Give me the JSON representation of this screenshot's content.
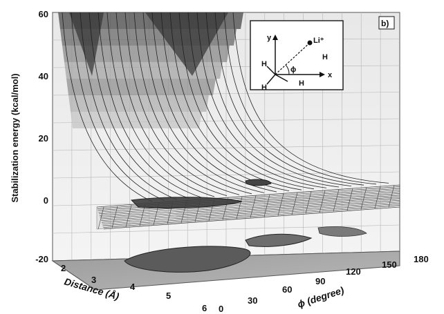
{
  "chart_data": {
    "type": "surface3d",
    "panel_label": "b)",
    "title": "",
    "z_axis": {
      "label": "Stabilization energy (kcal/mol)",
      "range": [
        -20,
        60
      ],
      "ticks": [
        "-20",
        "0",
        "20",
        "40",
        "60"
      ]
    },
    "x_axis": {
      "label": "Distance (Å)",
      "range": [
        2,
        6
      ],
      "ticks": [
        "2",
        "3",
        "4",
        "5",
        "6"
      ]
    },
    "y_axis": {
      "label": "ϕ (degree)",
      "range": [
        0,
        180
      ],
      "ticks": [
        "0",
        "30",
        "60",
        "90",
        "120",
        "150",
        "180"
      ]
    },
    "surface": {
      "description_values": [
        {
          "distance": 2.0,
          "phi": 0,
          "energy": 60
        },
        {
          "distance": 2.5,
          "phi": 0,
          "energy": 25
        },
        {
          "distance": 3.0,
          "phi": 0,
          "energy": 3
        },
        {
          "distance": 4.0,
          "phi": 90,
          "energy": -4
        },
        {
          "distance": 6.0,
          "phi": 180,
          "energy": 0
        }
      ],
      "floor_contour_level": -20
    },
    "inset": {
      "labels": [
        "y",
        "x",
        "Li⁺",
        "H",
        "H",
        "H",
        "H",
        "ϕ"
      ]
    }
  }
}
